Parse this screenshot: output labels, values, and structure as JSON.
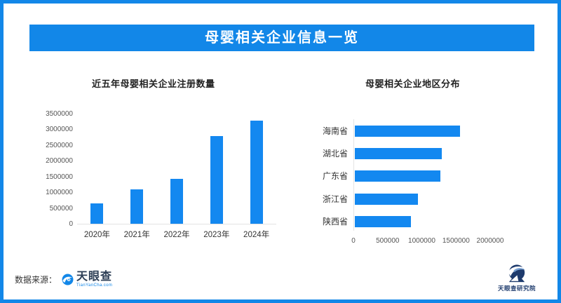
{
  "page": {
    "title": "母婴相关企业信息一览"
  },
  "colors": {
    "accent": "#1287e8",
    "bar": "#1388f0",
    "navy": "#1e3b6d",
    "axis_line": "#e3e3e3",
    "text_dark": "#222222",
    "text_label": "#333333",
    "text_tick": "#555555"
  },
  "chart_data": [
    {
      "type": "bar",
      "orientation": "vertical",
      "title": "近五年母婴相关企业注册数量",
      "categories": [
        "2020年",
        "2021年",
        "2022年",
        "2023年",
        "2024年"
      ],
      "values": [
        650000,
        1100000,
        1430000,
        2780000,
        3280000
      ],
      "ylabel": "",
      "ylim": [
        0,
        3500000
      ],
      "yticks": [
        0,
        500000,
        1000000,
        1500000,
        2000000,
        2500000,
        3000000,
        3500000
      ],
      "grid": false,
      "legend": false,
      "bar_color": "#1388f0"
    },
    {
      "type": "bar",
      "orientation": "horizontal",
      "title": "母婴相关企业地区分布",
      "categories": [
        "海南省",
        "湖北省",
        "广东省",
        "浙江省",
        "陕西省"
      ],
      "values": [
        1540000,
        1270000,
        1250000,
        920000,
        820000
      ],
      "xlabel": "",
      "xlim": [
        0,
        2000000
      ],
      "xticks": [
        0,
        500000,
        1000000,
        1500000,
        2000000
      ],
      "grid": false,
      "legend": false,
      "bar_color": "#1388f0"
    }
  ],
  "footer": {
    "source_label": "数据来源：",
    "tianyancha": {
      "name": "天眼查",
      "domain": "TianYanCha.com"
    },
    "research_institute": "天眼查研究院"
  }
}
